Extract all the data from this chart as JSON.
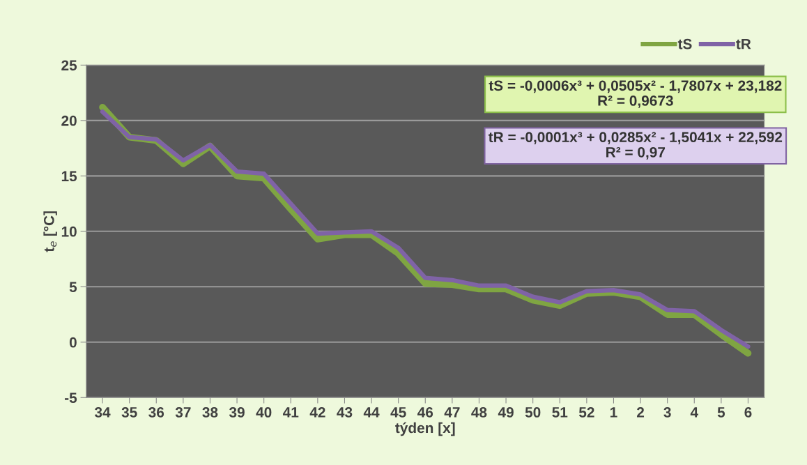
{
  "chart_data": {
    "type": "line",
    "xlabel": "týden [x]",
    "ylabel": "t$_{e}$ [°C]",
    "categories": [
      "34",
      "35",
      "36",
      "37",
      "38",
      "39",
      "40",
      "41",
      "42",
      "43",
      "44",
      "45",
      "46",
      "47",
      "48",
      "49",
      "50",
      "51",
      "52",
      "1",
      "2",
      "3",
      "4",
      "5",
      "6"
    ],
    "series": [
      {
        "name": "tS",
        "color": "#7fa542",
        "values": [
          21.2,
          18.5,
          18.2,
          16.1,
          17.7,
          15.0,
          14.8,
          12.0,
          9.3,
          9.7,
          9.7,
          8.0,
          5.3,
          5.2,
          4.8,
          4.8,
          3.8,
          3.3,
          4.4,
          4.5,
          4.1,
          2.5,
          2.5,
          0.7,
          -1.0
        ]
      },
      {
        "name": "tR",
        "color": "#7f63a6",
        "values": [
          20.8,
          18.5,
          18.3,
          16.4,
          17.8,
          15.4,
          15.2,
          12.5,
          9.8,
          9.9,
          10.0,
          8.5,
          5.8,
          5.6,
          5.1,
          5.1,
          4.1,
          3.6,
          4.6,
          4.7,
          4.3,
          2.9,
          2.8,
          1.1,
          -0.4
        ]
      }
    ],
    "annotations": [
      "tS = -0,0006x³ + 0,0505x² - 1,7807x + 23,182\nR² = 0,9673",
      "tR = -0,0001x³ + 0,0285x² - 1,5041x + 22,592\nR² = 0,97"
    ],
    "ylim": [
      -5,
      25
    ],
    "yticks": [
      -5,
      0,
      5,
      10,
      15,
      20,
      25
    ],
    "grid": "y",
    "legend": "top right",
    "marker": "none",
    "line_style": "solid"
  }
}
